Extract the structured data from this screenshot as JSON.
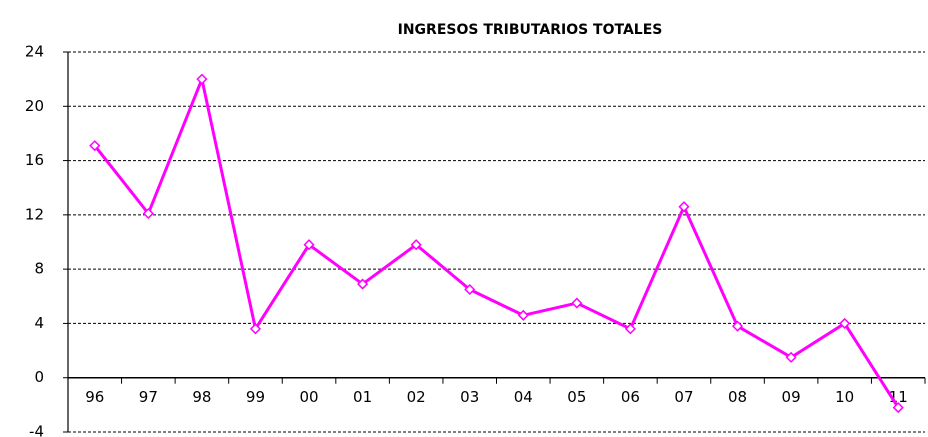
{
  "chart_data": {
    "type": "line",
    "title": "INGRESOS TRIBUTARIOS TOTALES",
    "categories": [
      "96",
      "97",
      "98",
      "99",
      "00",
      "01",
      "02",
      "03",
      "04",
      "05",
      "06",
      "07",
      "08",
      "09",
      "10",
      "11"
    ],
    "series": [
      {
        "name": "Ingresos tributarios totales",
        "color": "#ff00ff",
        "values": [
          17.1,
          12.1,
          22.0,
          3.6,
          9.8,
          6.9,
          9.8,
          6.5,
          4.6,
          5.5,
          3.6,
          12.6,
          3.8,
          1.5,
          4.0,
          -2.2
        ]
      }
    ],
    "ylim": [
      -4,
      24
    ],
    "yticks": [
      -4,
      0,
      4,
      8,
      12,
      16,
      20,
      24
    ],
    "grid": true
  }
}
